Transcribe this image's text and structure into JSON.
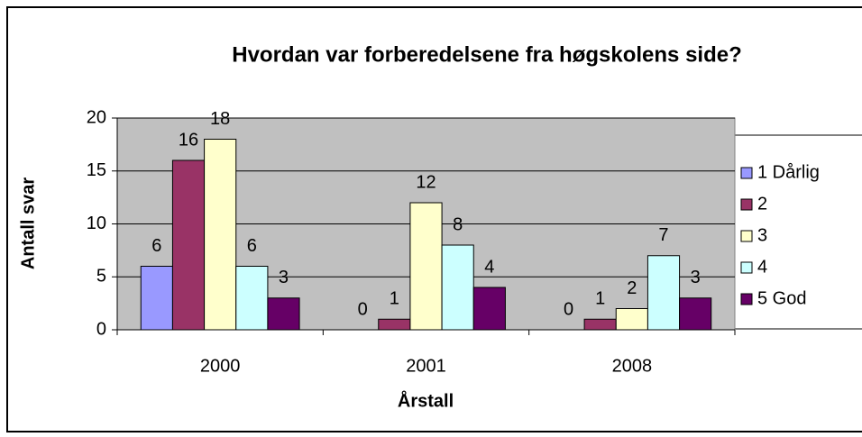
{
  "chart_data": {
    "type": "bar",
    "title": "Hvordan var forberedelsene fra høgskolens side?",
    "x_label": "Årstall",
    "y_label": "Antall svar",
    "categories": [
      "2000",
      "2001",
      "2008"
    ],
    "series": [
      {
        "name": "1 Dårlig",
        "color": "#9999ff",
        "values": [
          6,
          0,
          0
        ]
      },
      {
        "name": "2",
        "color": "#993366",
        "values": [
          16,
          1,
          1
        ]
      },
      {
        "name": "3",
        "color": "#ffffcc",
        "values": [
          18,
          12,
          2
        ]
      },
      {
        "name": "4",
        "color": "#ccffff",
        "values": [
          6,
          8,
          7
        ]
      },
      {
        "name": "5 God",
        "color": "#660066",
        "values": [
          3,
          4,
          3
        ]
      }
    ],
    "ylim": [
      0,
      20
    ],
    "yticks": [
      0,
      5,
      10,
      15,
      20
    ],
    "grid": true,
    "legend": "right"
  }
}
